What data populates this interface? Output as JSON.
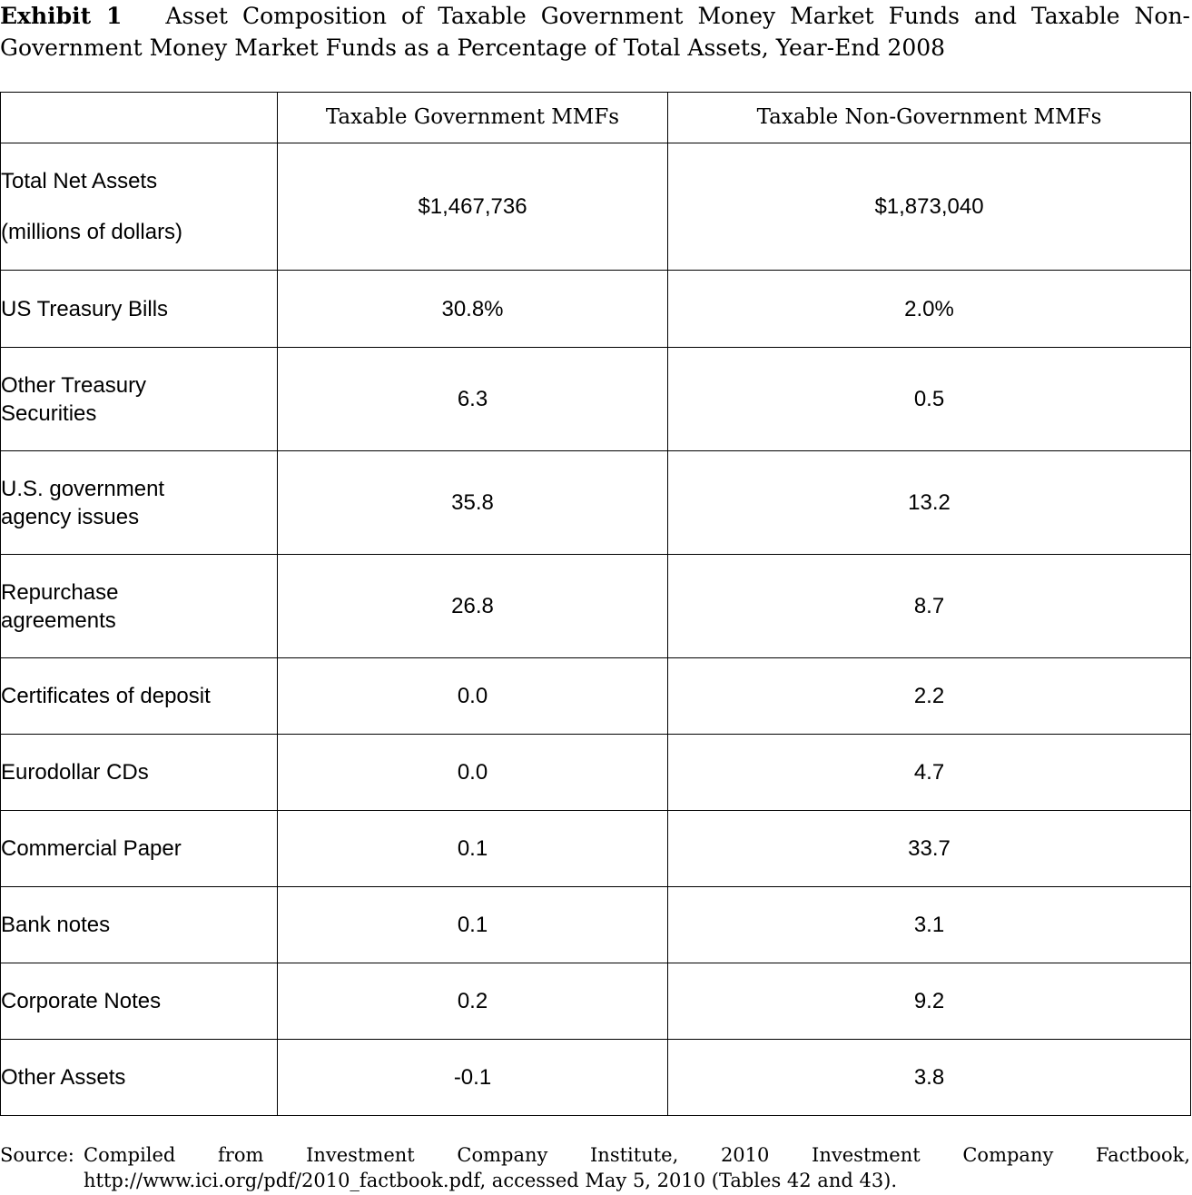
{
  "exhibit": {
    "label": "Exhibit 1",
    "title": "Asset Composition of Taxable Government Money Market Funds and Taxable Non-Government Money Market Funds as a Percentage of Total Assets, Year-End 2008"
  },
  "table": {
    "headers": [
      "",
      "Taxable Government MMFs",
      "Taxable Non-Government MMFs"
    ],
    "total_net_assets": {
      "label_line1": "Total Net Assets",
      "label_line2": "(millions of dollars)",
      "gov": "$1,467,736",
      "nongov": "$1,873,040"
    },
    "rows": [
      {
        "label": "US Treasury Bills",
        "gov": "30.8%",
        "nongov": "2.0%"
      },
      {
        "label": "Other Treasury Securities",
        "gov": "6.3",
        "nongov": "0.5"
      },
      {
        "label": "U.S. government agency issues",
        "gov": "35.8",
        "nongov": "13.2"
      },
      {
        "label": "Repurchase agreements",
        "gov": "26.8",
        "nongov": "8.7"
      },
      {
        "label": "Certificates of deposit",
        "gov": "0.0",
        "nongov": "2.2"
      },
      {
        "label": "Eurodollar CDs",
        "gov": "0.0",
        "nongov": "4.7"
      },
      {
        "label": "Commercial Paper",
        "gov": "0.1",
        "nongov": "33.7"
      },
      {
        "label": "Bank notes",
        "gov": "0.1",
        "nongov": "3.1"
      },
      {
        "label": "Corporate Notes",
        "gov": "0.2",
        "nongov": "9.2"
      },
      {
        "label": "Other Assets",
        "gov": "-0.1",
        "nongov": "3.8"
      }
    ]
  },
  "source": {
    "label": "Source:",
    "text": "Compiled from Investment Company Institute, 2010 Investment Company Factbook, http://www.ici.org/pdf/2010_factbook.pdf, accessed May 5, 2010 (Tables 42 and 43)."
  }
}
